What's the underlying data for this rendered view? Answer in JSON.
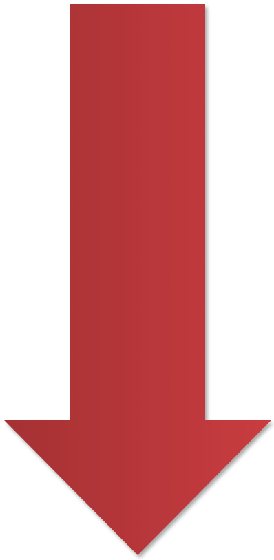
{
  "graphic": {
    "icon": "down-arrow-icon",
    "colors": {
      "fill_dark": "#a53133",
      "fill_mid": "#b8373a",
      "fill_light": "#c93c3f",
      "shadow": "#000000",
      "background": "#ffffff"
    }
  }
}
